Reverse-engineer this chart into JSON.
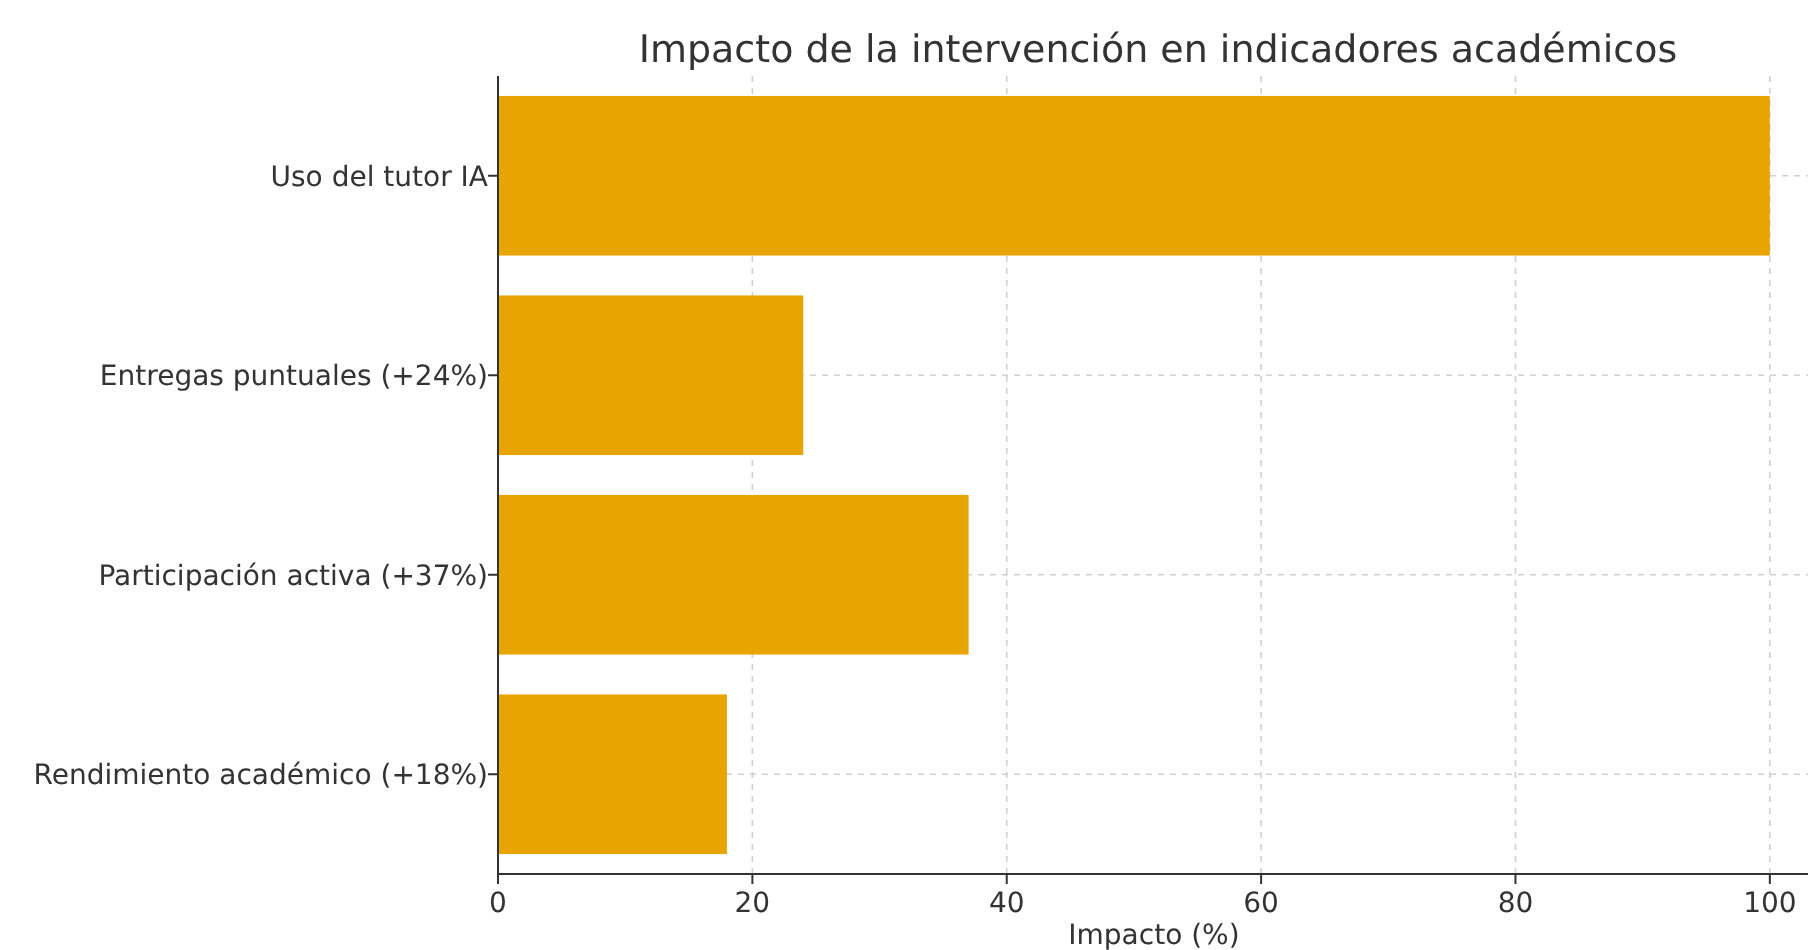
{
  "chart_data": {
    "type": "bar",
    "orientation": "horizontal",
    "title": "Impacto de la intervención en indicadores académicos",
    "xlabel": "Impacto (%)",
    "categories": [
      "Uso del tutor IA",
      "Entregas puntuales (+24%)",
      "Participación activa (+37%)",
      "Rendimiento académico (+18%)"
    ],
    "values": [
      100,
      24,
      37,
      18
    ],
    "color": "#e8a400",
    "xlim": [
      0,
      103
    ],
    "xticks": [
      0,
      20,
      40,
      60,
      80,
      100
    ],
    "grid": true
  }
}
